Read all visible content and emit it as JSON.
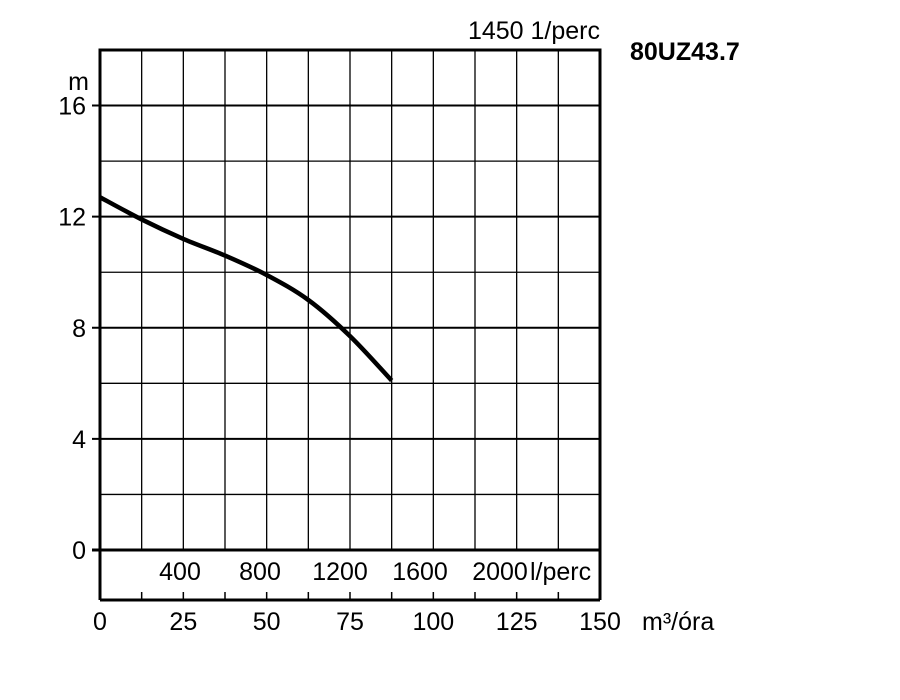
{
  "chart_data": {
    "type": "line",
    "title": "80UZ43.7",
    "speed_label": "1450 1/perc",
    "ylabel": "m",
    "ylim": [
      0,
      18
    ],
    "yticks": [
      0,
      4,
      8,
      12,
      16
    ],
    "x_primary": {
      "label": "m³/óra",
      "ticks": [
        0,
        25,
        50,
        75,
        100,
        125,
        150
      ],
      "lim": [
        0,
        150
      ]
    },
    "x_secondary": {
      "label": "l/perc",
      "ticks": [
        400,
        800,
        1200,
        1600,
        2000
      ]
    },
    "grid": true,
    "series": [
      {
        "x": [
          0,
          12.5,
          25,
          37.5,
          50,
          62.5,
          75,
          87.5
        ],
        "y": [
          12.7,
          11.9,
          11.2,
          10.6,
          9.9,
          9.0,
          7.7,
          6.1
        ]
      }
    ]
  }
}
